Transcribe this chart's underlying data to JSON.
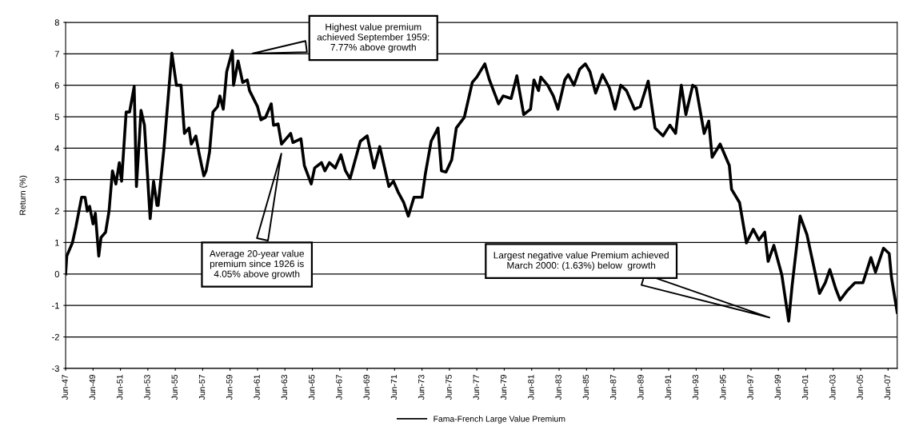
{
  "chart_data": {
    "type": "line",
    "ylabel": "Return (%)",
    "x": [
      "1947-06",
      "1947-07",
      "1947-12",
      "1948-03",
      "1948-08",
      "1948-11",
      "1949-01",
      "1949-03",
      "1949-06",
      "1949-08",
      "1949-11",
      "1950-01",
      "1950-05",
      "1950-08",
      "1950-11",
      "1951-02",
      "1951-05",
      "1951-07",
      "1951-11",
      "1952-02",
      "1952-06",
      "1952-08",
      "1952-12",
      "1953-03",
      "1953-08",
      "1953-11",
      "1954-02",
      "1954-03",
      "1954-08",
      "1955-03",
      "1955-07",
      "1955-11",
      "1956-02",
      "1956-06",
      "1956-08",
      "1956-12",
      "1957-03",
      "1957-07",
      "1957-09",
      "1957-12",
      "1958-03",
      "1958-07",
      "1958-09",
      "1958-12",
      "1959-03",
      "1959-08",
      "1959-09",
      "1960-01",
      "1960-05",
      "1960-09",
      "1960-11",
      "1961-06",
      "1961-09",
      "1962-01",
      "1962-06",
      "1962-08",
      "1962-12",
      "1963-03",
      "1963-07",
      "1963-11",
      "1964-01",
      "1964-08",
      "1964-11",
      "1965-05",
      "1965-08",
      "1966-02",
      "1966-05",
      "1966-09",
      "1967-02",
      "1967-07",
      "1967-11",
      "1968-03",
      "1968-12",
      "1969-06",
      "1969-12",
      "1970-05",
      "1971-01",
      "1971-05",
      "1971-09",
      "1972-02",
      "1972-06",
      "1972-11",
      "1973-06",
      "1973-09",
      "1974-02",
      "1974-08",
      "1974-11",
      "1975-03",
      "1975-08",
      "1975-12",
      "1976-07",
      "1977-02",
      "1977-06",
      "1978-01",
      "1978-05",
      "1979-01",
      "1979-05",
      "1979-12",
      "1980-05",
      "1980-11",
      "1981-05",
      "1981-08",
      "1981-12",
      "1982-02",
      "1982-08",
      "1983-01",
      "1983-05",
      "1983-11",
      "1984-02",
      "1984-07",
      "1984-12",
      "1985-05",
      "1985-09",
      "1986-02",
      "1986-08",
      "1987-02",
      "1987-07",
      "1987-12",
      "1988-05",
      "1988-12",
      "1989-05",
      "1989-12",
      "1990-06",
      "1991-01",
      "1991-07",
      "1991-12",
      "1992-05",
      "1992-09",
      "1993-03",
      "1993-06",
      "1994-01",
      "1994-05",
      "1994-08",
      "1995-03",
      "1995-11",
      "1996-01",
      "1996-08",
      "1997-02",
      "1997-08",
      "1998-01",
      "1998-06",
      "1998-09",
      "1999-02",
      "1999-09",
      "2000-03",
      "2000-06",
      "2001-01",
      "2001-07",
      "2002-02",
      "2002-06",
      "2002-11",
      "2003-03",
      "2003-08",
      "2003-12",
      "2004-06",
      "2005-01",
      "2005-08",
      "2006-03",
      "2006-07",
      "2007-02",
      "2007-07",
      "2007-09",
      "2008-02"
    ],
    "series": [
      {
        "name": "Fama-French Large Value Premium",
        "color": "#000000",
        "values": [
          0.0,
          0.57,
          1.0,
          1.5,
          2.44,
          2.44,
          2.0,
          2.15,
          1.59,
          1.93,
          0.57,
          1.16,
          1.33,
          2.0,
          3.28,
          2.86,
          3.54,
          2.95,
          5.15,
          5.15,
          5.96,
          2.78,
          5.2,
          4.73,
          1.76,
          2.95,
          2.18,
          2.18,
          3.96,
          7.02,
          6.0,
          6.0,
          4.47,
          4.64,
          4.13,
          4.39,
          3.8,
          3.12,
          3.28,
          3.88,
          5.15,
          5.32,
          5.66,
          5.24,
          6.43,
          7.1,
          6.0,
          6.77,
          6.09,
          6.17,
          5.83,
          5.32,
          4.9,
          4.98,
          5.41,
          4.73,
          4.77,
          4.13,
          4.3,
          4.47,
          4.18,
          4.3,
          3.45,
          2.86,
          3.37,
          3.54,
          3.28,
          3.54,
          3.37,
          3.79,
          3.28,
          3.03,
          4.22,
          4.39,
          3.37,
          4.05,
          2.78,
          2.95,
          2.61,
          2.27,
          1.84,
          2.44,
          2.44,
          3.2,
          4.22,
          4.64,
          3.28,
          3.24,
          3.63,
          4.64,
          4.98,
          6.09,
          6.26,
          6.68,
          6.17,
          5.41,
          5.66,
          5.58,
          6.3,
          5.07,
          5.24,
          6.17,
          5.83,
          6.26,
          6.0,
          5.66,
          5.24,
          6.17,
          6.34,
          6.0,
          6.51,
          6.68,
          6.43,
          5.75,
          6.34,
          5.92,
          5.24,
          6.0,
          5.83,
          5.24,
          5.32,
          6.13,
          4.64,
          4.39,
          4.73,
          4.47,
          6.0,
          5.07,
          6.0,
          5.92,
          4.47,
          4.86,
          3.71,
          4.13,
          3.45,
          2.69,
          2.27,
          0.99,
          1.42,
          1.08,
          1.33,
          0.4,
          0.91,
          -0.03,
          -1.5,
          -0.37,
          1.84,
          1.25,
          0.06,
          -0.62,
          -0.28,
          0.14,
          -0.45,
          -0.83,
          -0.54,
          -0.28,
          -0.28,
          0.52,
          0.06,
          0.82,
          0.65,
          -0.11,
          -1.22
        ]
      }
    ],
    "xlim": [
      "1947-06",
      "2008-02"
    ],
    "xticks": [
      {
        "value": "1947-06",
        "label": "Jun-47"
      },
      {
        "value": "1949-06",
        "label": "Jun-49"
      },
      {
        "value": "1951-06",
        "label": "Jun-51"
      },
      {
        "value": "1953-06",
        "label": "Jun-53"
      },
      {
        "value": "1955-06",
        "label": "Jun-55"
      },
      {
        "value": "1957-06",
        "label": "Jun-57"
      },
      {
        "value": "1959-06",
        "label": "Jun-59"
      },
      {
        "value": "1961-06",
        "label": "Jun-61"
      },
      {
        "value": "1963-06",
        "label": "Jun-63"
      },
      {
        "value": "1965-06",
        "label": "Jun-65"
      },
      {
        "value": "1967-06",
        "label": "Jun-67"
      },
      {
        "value": "1969-06",
        "label": "Jun-69"
      },
      {
        "value": "1971-06",
        "label": "Jun-71"
      },
      {
        "value": "1973-06",
        "label": "Jun-73"
      },
      {
        "value": "1975-06",
        "label": "Jun-75"
      },
      {
        "value": "1977-06",
        "label": "Jun-77"
      },
      {
        "value": "1979-06",
        "label": "Jun-79"
      },
      {
        "value": "1981-06",
        "label": "Jun-81"
      },
      {
        "value": "1983-06",
        "label": "Jun-83"
      },
      {
        "value": "1985-06",
        "label": "Jun-85"
      },
      {
        "value": "1987-06",
        "label": "Jun-87"
      },
      {
        "value": "1989-06",
        "label": "Jun-89"
      },
      {
        "value": "1991-06",
        "label": "Jun-91"
      },
      {
        "value": "1993-06",
        "label": "Jun-93"
      },
      {
        "value": "1995-06",
        "label": "Jun-95"
      },
      {
        "value": "1997-06",
        "label": "Jun-97"
      },
      {
        "value": "1999-06",
        "label": "Jun-99"
      },
      {
        "value": "2001-06",
        "label": "Jun-01"
      },
      {
        "value": "2003-06",
        "label": "Jun-03"
      },
      {
        "value": "2005-06",
        "label": "Jun-05"
      },
      {
        "value": "2007-06",
        "label": "Jun-07"
      }
    ],
    "ylim": [
      -3,
      8
    ],
    "yticks": [
      -3,
      -2,
      -1,
      0,
      1,
      2,
      3,
      4,
      5,
      6,
      7,
      8
    ],
    "grid": "y",
    "legend": "bottom",
    "marker": "none",
    "line_style": "solid",
    "annotations": [
      "Highest value premium\nachieved September 1959:\n7.77% above growth",
      "Average 20-year value\npremium since 1926 is\n4.05% above growth",
      "Largest negative value Premium achieved\nMarch 2000: (1.63%) below  growth"
    ]
  }
}
